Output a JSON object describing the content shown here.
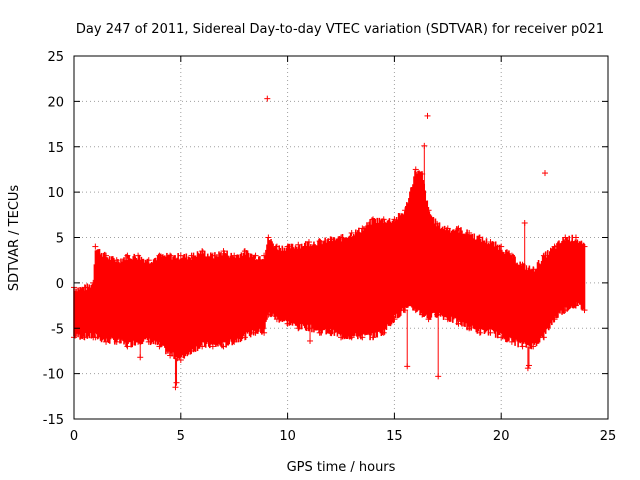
{
  "chart_data": {
    "type": "scatter",
    "title": "Day 247 of 2011, Sidereal Day-to-day VTEC variation (SDTVAR) for receiver p021",
    "xlabel": "GPS time / hours",
    "ylabel": "SDTVAR / TECUs",
    "xlim": [
      0,
      25
    ],
    "ylim": [
      -15,
      25
    ],
    "xticks": [
      0,
      5,
      10,
      15,
      20,
      25
    ],
    "yticks": [
      -15,
      -10,
      -5,
      0,
      5,
      10,
      15,
      20,
      25
    ],
    "grid": true,
    "marker": "+",
    "color": "#ff0000",
    "series": [
      {
        "name": "SDTVAR",
        "envelope": {
          "x": [
            0.0,
            0.5,
            0.9,
            1.0,
            1.5,
            2.0,
            2.5,
            3.0,
            3.5,
            4.0,
            4.5,
            5.0,
            5.5,
            6.0,
            6.5,
            7.0,
            7.5,
            8.0,
            8.5,
            8.9,
            9.1,
            9.5,
            10.0,
            10.5,
            11.0,
            11.5,
            12.0,
            12.5,
            13.0,
            13.5,
            14.0,
            14.5,
            15.0,
            15.5,
            16.0,
            16.3,
            16.6,
            17.0,
            17.5,
            18.0,
            18.5,
            19.0,
            19.5,
            20.0,
            20.5,
            21.0,
            21.5,
            22.0,
            22.5,
            23.0,
            23.5,
            23.9
          ],
          "upper": [
            -0.5,
            -0.5,
            0.0,
            4.0,
            3.0,
            2.5,
            3.0,
            3.0,
            2.5,
            3.0,
            3.0,
            3.0,
            3.0,
            3.5,
            3.0,
            3.5,
            3.0,
            3.5,
            3.0,
            3.0,
            5.0,
            4.0,
            4.0,
            4.2,
            4.5,
            4.6,
            4.8,
            5.0,
            5.5,
            6.0,
            7.0,
            7.0,
            7.0,
            8.0,
            12.5,
            12.0,
            8.0,
            6.5,
            6.0,
            6.0,
            5.5,
            5.0,
            4.5,
            4.0,
            3.0,
            2.0,
            1.5,
            3.0,
            4.0,
            5.0,
            5.0,
            4.0
          ],
          "lower": [
            -6.0,
            -6.0,
            -6.0,
            -6.0,
            -6.5,
            -6.5,
            -7.0,
            -6.5,
            -6.5,
            -7.0,
            -8.0,
            -8.5,
            -7.5,
            -7.0,
            -7.0,
            -7.0,
            -6.5,
            -6.0,
            -5.5,
            -5.5,
            -3.5,
            -4.0,
            -4.5,
            -5.0,
            -5.0,
            -5.5,
            -5.5,
            -6.0,
            -6.0,
            -6.0,
            -6.0,
            -5.5,
            -4.0,
            -3.0,
            -3.0,
            -3.5,
            -4.0,
            -3.5,
            -4.0,
            -4.5,
            -5.0,
            -5.5,
            -5.5,
            -6.0,
            -6.5,
            -7.0,
            -7.0,
            -6.0,
            -4.0,
            -3.0,
            -2.5,
            -3.0
          ]
        },
        "outliers": {
          "x": [
            9.05,
            16.55,
            22.05,
            16.4,
            11.05,
            15.6,
            17.05,
            21.25,
            21.3,
            4.75,
            4.8,
            3.1,
            21.1,
            16.1
          ],
          "y": [
            20.3,
            18.4,
            12.1,
            15.1,
            -6.4,
            -9.2,
            -10.3,
            -9.4,
            -9.1,
            -11.5,
            -11.0,
            -8.2,
            6.6,
            11.8
          ]
        }
      }
    ]
  }
}
